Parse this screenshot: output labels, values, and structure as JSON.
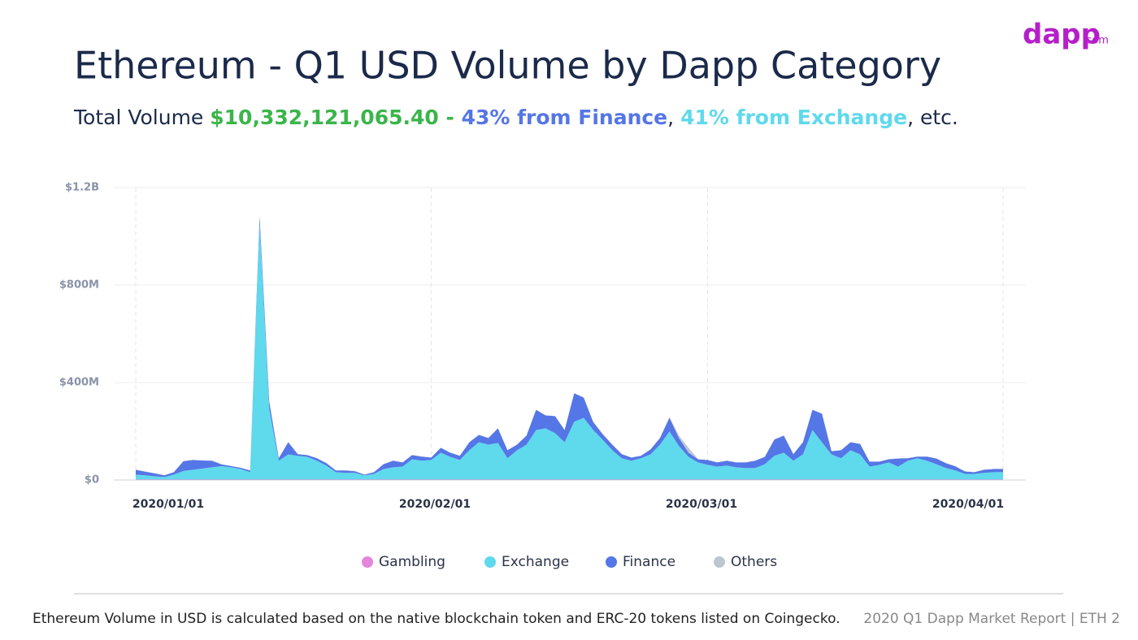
{
  "logo": {
    "name": "dapp",
    "suffix": ".com"
  },
  "chart_data": {
    "type": "stacked-area",
    "title": "Ethereum - Q1 USD Volume by Dapp Category",
    "subtitle_parts": [
      "Total Volume ",
      "$10,332,121,065.40 - ",
      " 43% from Finance",
      ", ",
      "41% from Exchange",
      ", etc."
    ],
    "x": [
      "2020/01/01",
      "2020/01/02",
      "2020/01/03",
      "2020/01/04",
      "2020/01/05",
      "2020/01/06",
      "2020/01/07",
      "2020/01/08",
      "2020/01/09",
      "2020/01/10",
      "2020/01/11",
      "2020/01/12",
      "2020/01/13",
      "2020/01/14",
      "2020/01/15",
      "2020/01/16",
      "2020/01/17",
      "2020/01/18",
      "2020/01/19",
      "2020/01/20",
      "2020/01/21",
      "2020/01/22",
      "2020/01/23",
      "2020/01/24",
      "2020/01/25",
      "2020/01/26",
      "2020/01/27",
      "2020/01/28",
      "2020/01/29",
      "2020/01/30",
      "2020/01/31",
      "2020/02/01",
      "2020/02/02",
      "2020/02/03",
      "2020/02/04",
      "2020/02/05",
      "2020/02/06",
      "2020/02/07",
      "2020/02/08",
      "2020/02/09",
      "2020/02/10",
      "2020/02/11",
      "2020/02/12",
      "2020/02/13",
      "2020/02/14",
      "2020/02/15",
      "2020/02/16",
      "2020/02/17",
      "2020/02/18",
      "2020/02/19",
      "2020/02/20",
      "2020/02/21",
      "2020/02/22",
      "2020/02/23",
      "2020/02/24",
      "2020/02/25",
      "2020/02/26",
      "2020/02/27",
      "2020/02/28",
      "2020/02/29",
      "2020/03/01",
      "2020/03/02",
      "2020/03/03",
      "2020/03/04",
      "2020/03/05",
      "2020/03/06",
      "2020/03/07",
      "2020/03/08",
      "2020/03/09",
      "2020/03/10",
      "2020/03/11",
      "2020/03/12",
      "2020/03/13",
      "2020/03/14",
      "2020/03/15",
      "2020/03/16",
      "2020/03/17",
      "2020/03/18",
      "2020/03/19",
      "2020/03/20",
      "2020/03/21",
      "2020/03/22",
      "2020/03/23",
      "2020/03/24",
      "2020/03/25",
      "2020/03/26",
      "2020/03/27",
      "2020/03/28",
      "2020/03/29",
      "2020/03/30",
      "2020/03/31",
      "2020/04/01"
    ],
    "xticks": [
      "2020/01/01",
      "2020/02/01",
      "2020/03/01",
      "2020/04/01"
    ],
    "ylim": [
      0,
      1200000000
    ],
    "yticks": [
      {
        "value": 0,
        "label": "$0"
      },
      {
        "value": 400000000,
        "label": "$400M"
      },
      {
        "value": 800000000,
        "label": "$800M"
      },
      {
        "value": 1200000000,
        "label": "$1.2B"
      }
    ],
    "grid": true,
    "series": [
      {
        "name": "Gambling",
        "color": "#e685dc",
        "values": [
          2000000,
          2000000,
          2000000,
          2000000,
          2000000,
          2000000,
          2000000,
          2000000,
          2000000,
          2000000,
          2000000,
          2000000,
          2000000,
          2000000,
          2000000,
          2000000,
          2000000,
          2000000,
          2000000,
          2000000,
          2000000,
          2000000,
          2000000,
          2000000,
          2000000,
          2000000,
          2000000,
          2000000,
          2000000,
          2000000,
          2000000,
          2000000,
          2000000,
          2000000,
          2000000,
          2000000,
          2000000,
          2000000,
          2000000,
          2000000,
          2000000,
          2000000,
          2000000,
          2000000,
          2000000,
          2000000,
          2000000,
          2000000,
          2000000,
          2000000,
          2000000,
          2000000,
          2000000,
          2000000,
          2000000,
          2000000,
          2000000,
          2000000,
          2000000,
          2000000,
          2000000,
          2000000,
          2000000,
          2000000,
          2000000,
          2000000,
          2000000,
          2000000,
          2000000,
          2000000,
          2000000,
          2000000,
          2000000,
          2000000,
          2000000,
          2000000,
          2000000,
          2000000,
          2000000,
          2000000,
          2000000,
          2000000,
          2000000,
          2000000,
          2000000,
          2000000,
          2000000,
          2000000,
          2000000,
          2000000,
          2000000,
          2000000
        ]
      },
      {
        "name": "Exchange",
        "color": "#5fd9ec",
        "values": [
          20000000,
          17000000,
          13000000,
          10000000,
          20000000,
          35000000,
          40000000,
          45000000,
          50000000,
          55000000,
          50000000,
          43000000,
          30000000,
          1050000000,
          290000000,
          77000000,
          103000000,
          97000000,
          93000000,
          77000000,
          57000000,
          30000000,
          27000000,
          27000000,
          17000000,
          23000000,
          43000000,
          50000000,
          53000000,
          83000000,
          77000000,
          80000000,
          110000000,
          93000000,
          80000000,
          120000000,
          153000000,
          143000000,
          150000000,
          87000000,
          120000000,
          143000000,
          203000000,
          210000000,
          190000000,
          153000000,
          237000000,
          253000000,
          203000000,
          163000000,
          120000000,
          87000000,
          77000000,
          87000000,
          103000000,
          143000000,
          197000000,
          137000000,
          93000000,
          70000000,
          60000000,
          53000000,
          57000000,
          50000000,
          47000000,
          47000000,
          63000000,
          97000000,
          110000000,
          77000000,
          103000000,
          203000000,
          153000000,
          103000000,
          87000000,
          120000000,
          103000000,
          53000000,
          60000000,
          70000000,
          53000000,
          77000000,
          87000000,
          77000000,
          63000000,
          47000000,
          37000000,
          23000000,
          23000000,
          27000000,
          30000000,
          30000000
        ]
      },
      {
        "name": "Finance",
        "color": "#5576e6",
        "values": [
          20000000,
          15000000,
          12000000,
          7000000,
          10000000,
          40000000,
          40000000,
          33000000,
          27000000,
          7000000,
          5000000,
          5000000,
          7000000,
          30000000,
          30000000,
          10000000,
          50000000,
          7000000,
          7000000,
          10000000,
          10000000,
          7000000,
          10000000,
          7000000,
          3000000,
          7000000,
          20000000,
          27000000,
          17000000,
          17000000,
          17000000,
          10000000,
          20000000,
          17000000,
          17000000,
          33000000,
          30000000,
          27000000,
          60000000,
          33000000,
          23000000,
          37000000,
          83000000,
          53000000,
          70000000,
          50000000,
          117000000,
          83000000,
          33000000,
          23000000,
          23000000,
          17000000,
          13000000,
          10000000,
          20000000,
          27000000,
          57000000,
          33000000,
          17000000,
          13000000,
          20000000,
          17000000,
          20000000,
          20000000,
          23000000,
          30000000,
          30000000,
          67000000,
          70000000,
          27000000,
          50000000,
          83000000,
          117000000,
          13000000,
          33000000,
          33000000,
          43000000,
          20000000,
          13000000,
          13000000,
          33000000,
          10000000,
          7000000,
          17000000,
          23000000,
          20000000,
          17000000,
          10000000,
          7000000,
          13000000,
          13000000,
          13000000
        ]
      },
      {
        "name": "Others",
        "color": "#bcc7d2",
        "values": [
          1000000,
          1000000,
          1000000,
          1000000,
          1000000,
          1000000,
          1000000,
          1000000,
          1000000,
          1000000,
          1000000,
          1000000,
          1000000,
          1000000,
          1000000,
          1000000,
          1000000,
          1000000,
          1000000,
          1000000,
          1000000,
          1000000,
          1000000,
          1000000,
          1000000,
          1000000,
          1000000,
          1000000,
          1000000,
          1000000,
          1000000,
          1000000,
          1000000,
          1000000,
          1000000,
          1000000,
          1000000,
          1000000,
          1000000,
          1000000,
          1000000,
          1000000,
          1000000,
          1000000,
          1000000,
          1000000,
          1000000,
          1000000,
          1000000,
          1000000,
          1000000,
          1000000,
          1000000,
          1000000,
          1000000,
          1000000,
          1000000,
          10000000,
          20000000,
          1000000,
          1000000,
          1000000,
          1000000,
          1000000,
          1000000,
          1000000,
          1000000,
          1000000,
          1000000,
          1000000,
          1000000,
          1000000,
          1000000,
          1000000,
          1000000,
          1000000,
          1000000,
          1000000,
          1000000,
          1000000,
          1000000,
          1000000,
          1000000,
          1000000,
          1000000,
          1000000,
          1000000,
          1000000,
          1000000,
          1000000,
          1000000,
          1000000
        ]
      }
    ],
    "note": "Ethereum Volume in USD  is calculated based on the native blockchain token and ERC-20 tokens listed on Coingecko.",
    "report_label": "2020 Q1 Dapp Market Report  |  ETH 2"
  }
}
